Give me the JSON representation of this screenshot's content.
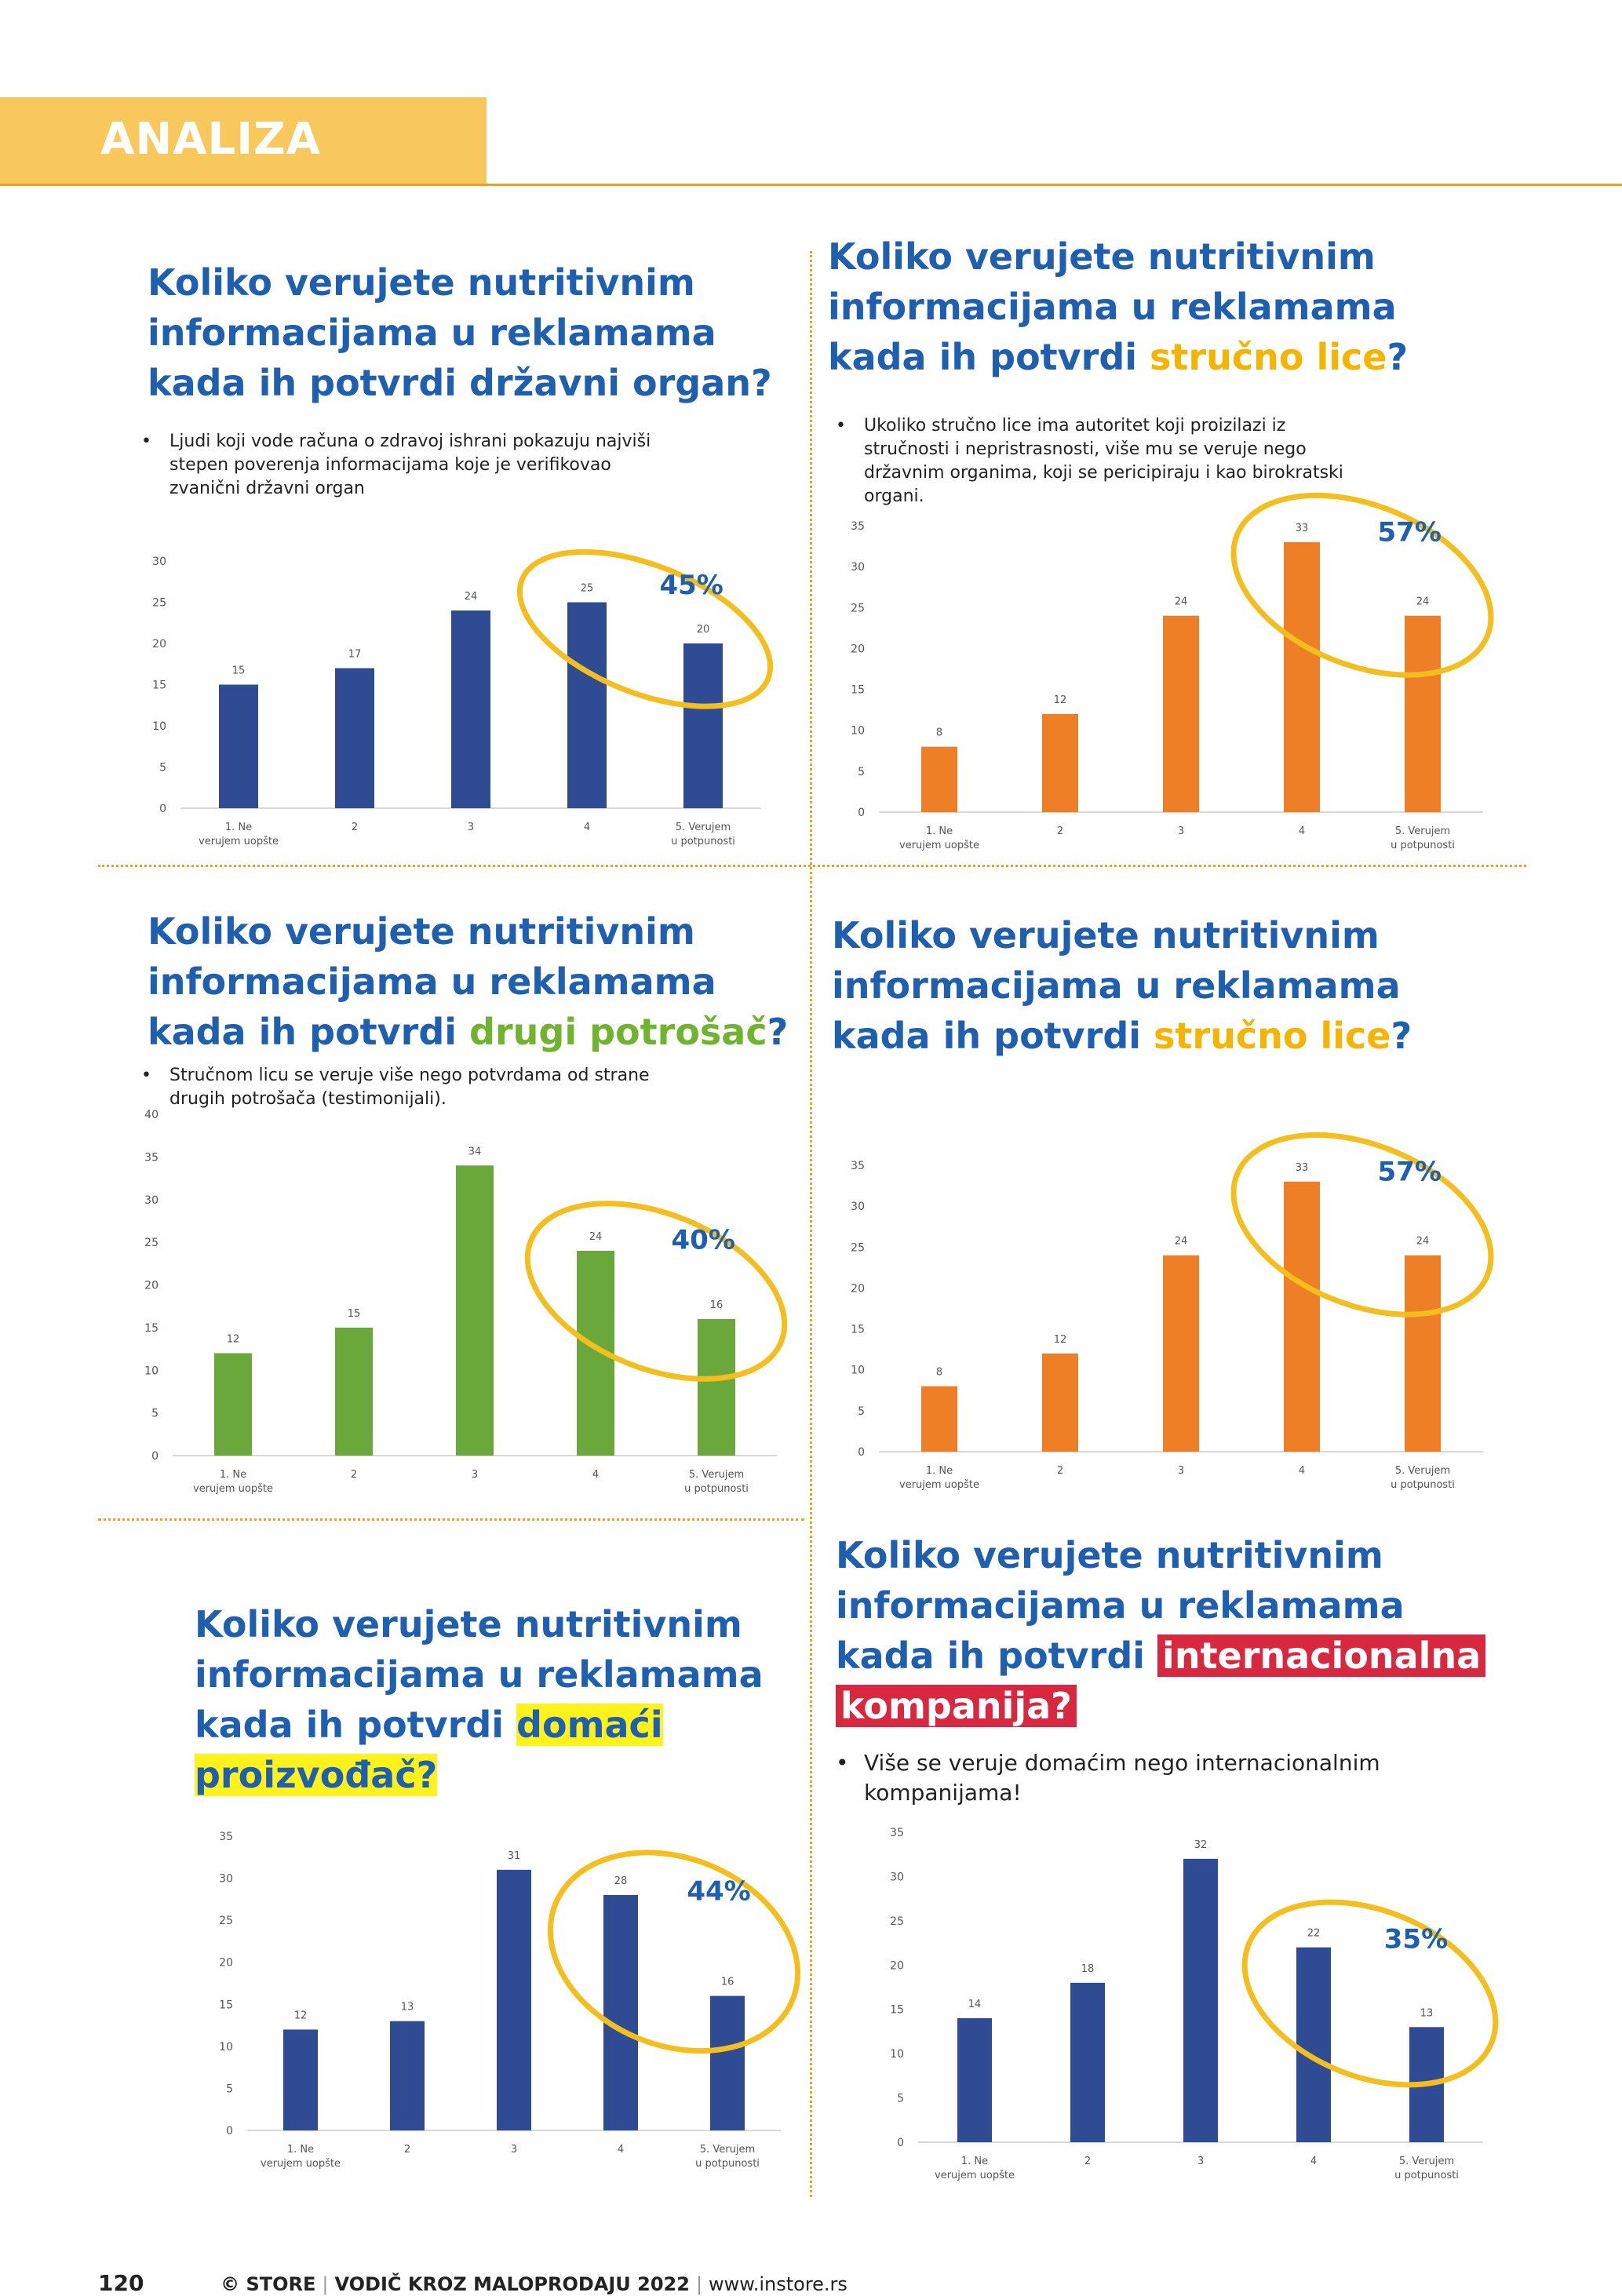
{
  "header": {
    "section_title": "ANALIZA",
    "accent": "#f9c85c"
  },
  "colors": {
    "title_blue": "#1f5fb0",
    "bar_blue": "#2f4b93",
    "bar_orange": "#ef7f26",
    "bar_green": "#6aa83b",
    "circle": "#f4bf1e"
  },
  "panels": [
    {
      "title_lines": [
        "Koliko verujete nutritivnim",
        "informacijama u reklamama",
        "kada ih potvrdi državni organ?"
      ],
      "note": "Ljudi koji vode računa o zdravoj ishrani pokazuju najviši stepen poverenja informacijama koje je verifikovao zvanični državni organ",
      "percent": "45%"
    },
    {
      "title_lines": [
        "Koliko verujete nutritivnim",
        "informacijama u reklamama",
        "kada ih potvrdi "
      ],
      "title_highlight": "stručno lice",
      "title_end": "?",
      "note": "Ukoliko stručno lice ima autoritet koji proizilazi iz stručnosti i nepristrasnosti, više mu se veruje nego državnim organima, koji se pericipiraju i kao birokratski organi.",
      "percent": "57%"
    },
    {
      "title_lines": [
        "Koliko verujete nutritivnim",
        "informacijama u reklamama",
        "kada ih potvrdi "
      ],
      "title_highlight": "drugi potrošač",
      "title_end": "?",
      "note": "Stručnom licu se veruje više nego potvrdama od strane drugih potrošača (testimonijali).",
      "percent": "40%"
    },
    {
      "title_lines": [
        "Koliko verujete nutritivnim",
        "informacijama u reklamama",
        "kada ih potvrdi "
      ],
      "title_highlight": "stručno lice",
      "title_end": "?",
      "percent": "57%"
    },
    {
      "title_lines": [
        "Koliko verujete nutritivnim",
        "informacijama u reklamama",
        "kada ih potvrdi "
      ],
      "title_highlight": "domaći",
      "title_line4": "proizvođač?",
      "percent": "44%"
    },
    {
      "title_lines": [
        "Koliko verujete nutritivnim",
        "informacijama u reklamama",
        "kada ih potvrdi "
      ],
      "title_highlight": "internacionalna",
      "title_line4": "kompanija?",
      "note": "Više se veruje domaćim nego internacionalnim kompanijama!",
      "percent": "35%"
    }
  ],
  "chart_data": [
    {
      "type": "bar",
      "categories": [
        "1. Ne verujem uopšte",
        "2",
        "3",
        "4",
        "5. Verujem u potpunosti"
      ],
      "values": [
        15,
        17,
        24,
        25,
        20
      ],
      "ylim": [
        0,
        30
      ],
      "yticks": [
        0,
        5,
        10,
        15,
        20,
        25,
        30
      ],
      "color": "#2f4b93"
    },
    {
      "type": "bar",
      "categories": [
        "1. Ne verujem uopšte",
        "2",
        "3",
        "4",
        "5. Verujem u potpunosti"
      ],
      "values": [
        8,
        12,
        24,
        33,
        24
      ],
      "ylim": [
        0,
        35
      ],
      "yticks": [
        0,
        5,
        10,
        15,
        20,
        25,
        30,
        35
      ],
      "color": "#ef7f26"
    },
    {
      "type": "bar",
      "categories": [
        "1. Ne verujem uopšte",
        "2",
        "3",
        "4",
        "5. Verujem u potpunosti"
      ],
      "values": [
        12,
        15,
        34,
        24,
        16
      ],
      "ylim": [
        0,
        40
      ],
      "yticks": [
        0,
        5,
        10,
        15,
        20,
        25,
        30,
        35,
        40
      ],
      "color": "#6aa83b"
    },
    {
      "type": "bar",
      "categories": [
        "1. Ne verujem uopšte",
        "2",
        "3",
        "4",
        "5. Verujem u potpunosti"
      ],
      "values": [
        8,
        12,
        24,
        33,
        24
      ],
      "ylim": [
        0,
        35
      ],
      "yticks": [
        0,
        5,
        10,
        15,
        20,
        25,
        30,
        35
      ],
      "color": "#ef7f26"
    },
    {
      "type": "bar",
      "categories": [
        "1. Ne verujem uopšte",
        "2",
        "3",
        "4",
        "5. Verujem u potpunosti"
      ],
      "values": [
        12,
        13,
        31,
        28,
        16
      ],
      "ylim": [
        0,
        35
      ],
      "yticks": [
        0,
        5,
        10,
        15,
        20,
        25,
        30,
        35
      ],
      "color": "#2f4b93"
    },
    {
      "type": "bar",
      "categories": [
        "1. Ne verujem uopšte",
        "2",
        "3",
        "4",
        "5. Verujem u potpunosti"
      ],
      "values": [
        14,
        18,
        32,
        22,
        13
      ],
      "ylim": [
        0,
        35
      ],
      "yticks": [
        0,
        5,
        10,
        15,
        20,
        25,
        30,
        35
      ],
      "color": "#2f4b93"
    }
  ],
  "footer": {
    "page_number": "120",
    "brand": "© STORE",
    "guide": "VODIČ KROZ MALOPRODAJU 2022",
    "url": "www.instore.rs"
  }
}
